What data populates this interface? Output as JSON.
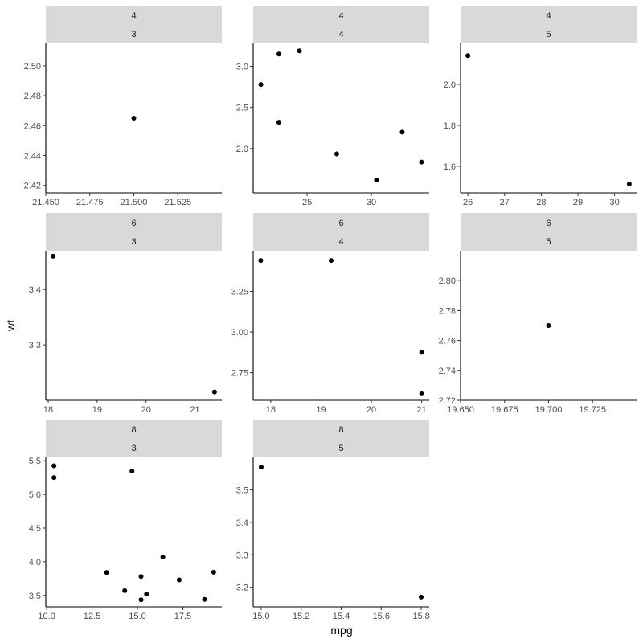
{
  "chart_data": {
    "type": "scatter",
    "xlabel": "mpg",
    "ylabel": "wt",
    "facet_scales": "free",
    "grid": false,
    "colors": {
      "point": "#000000",
      "strip_background": "#d9d9d9",
      "axis_line": "#000000",
      "tick_label": "#4d4d4d",
      "panel_background": "#ffffff"
    },
    "panels": [
      {
        "id": "4-3",
        "strip": [
          "4",
          "3"
        ],
        "xlim": [
          21.45,
          21.55
        ],
        "ylim": [
          2.415,
          2.515
        ],
        "xticks": [
          21.45,
          21.475,
          21.5,
          21.525
        ],
        "xtick_labels": [
          "21.450",
          "21.475",
          "21.500",
          "21.525"
        ],
        "yticks": [
          2.42,
          2.44,
          2.46,
          2.48,
          2.5
        ],
        "ytick_labels": [
          "2.42",
          "2.44",
          "2.46",
          "2.48",
          "2.50"
        ],
        "points": [
          {
            "x": 21.5,
            "y": 2.465
          }
        ]
      },
      {
        "id": "4-4",
        "strip": [
          "4",
          "4"
        ],
        "xlim": [
          20.8,
          34.5
        ],
        "ylim": [
          1.46,
          3.28
        ],
        "xticks": [
          25,
          30
        ],
        "xtick_labels": [
          "25",
          "30"
        ],
        "yticks": [
          2.0,
          2.5,
          3.0
        ],
        "ytick_labels": [
          "2.0",
          "2.5",
          "3.0"
        ],
        "points": [
          {
            "x": 21.4,
            "y": 2.78
          },
          {
            "x": 22.8,
            "y": 3.15
          },
          {
            "x": 22.8,
            "y": 2.32
          },
          {
            "x": 24.4,
            "y": 3.19
          },
          {
            "x": 27.3,
            "y": 1.935
          },
          {
            "x": 30.4,
            "y": 1.615
          },
          {
            "x": 32.4,
            "y": 2.2
          },
          {
            "x": 33.9,
            "y": 1.835
          }
        ]
      },
      {
        "id": "4-5",
        "strip": [
          "4",
          "5"
        ],
        "xlim": [
          25.8,
          30.6
        ],
        "ylim": [
          1.47,
          2.2
        ],
        "xticks": [
          26,
          27,
          28,
          29,
          30
        ],
        "xtick_labels": [
          "26",
          "27",
          "28",
          "29",
          "30"
        ],
        "yticks": [
          1.6,
          1.8,
          2.0
        ],
        "ytick_labels": [
          "1.6",
          "1.8",
          "2.0"
        ],
        "points": [
          {
            "x": 26.0,
            "y": 2.14
          },
          {
            "x": 30.4,
            "y": 1.513
          }
        ]
      },
      {
        "id": "6-3",
        "strip": [
          "6",
          "3"
        ],
        "xlim": [
          17.95,
          21.55
        ],
        "ylim": [
          3.2,
          3.47
        ],
        "xticks": [
          18,
          19,
          20,
          21
        ],
        "xtick_labels": [
          "18",
          "19",
          "20",
          "21"
        ],
        "yticks": [
          3.3,
          3.4
        ],
        "ytick_labels": [
          "3.3",
          "3.4"
        ],
        "points": [
          {
            "x": 18.1,
            "y": 3.46
          },
          {
            "x": 21.4,
            "y": 3.215
          }
        ]
      },
      {
        "id": "6-4",
        "strip": [
          "6",
          "4"
        ],
        "xlim": [
          17.65,
          21.15
        ],
        "ylim": [
          2.58,
          3.5
        ],
        "xticks": [
          18,
          19,
          20,
          21
        ],
        "xtick_labels": [
          "18",
          "19",
          "20",
          "21"
        ],
        "yticks": [
          2.75,
          3.0,
          3.25
        ],
        "ytick_labels": [
          "2.75",
          "3.00",
          "3.25"
        ],
        "points": [
          {
            "x": 17.8,
            "y": 3.44
          },
          {
            "x": 19.2,
            "y": 3.44
          },
          {
            "x": 21.0,
            "y": 2.875
          },
          {
            "x": 21.0,
            "y": 2.62
          }
        ]
      },
      {
        "id": "6-5",
        "strip": [
          "6",
          "5"
        ],
        "xlim": [
          19.65,
          19.75
        ],
        "ylim": [
          2.72,
          2.82
        ],
        "xticks": [
          19.65,
          19.675,
          19.7,
          19.725
        ],
        "xtick_labels": [
          "19.650",
          "19.675",
          "19.700",
          "19.725"
        ],
        "yticks": [
          2.72,
          2.74,
          2.76,
          2.78,
          2.8
        ],
        "ytick_labels": [
          "2.72",
          "2.74",
          "2.76",
          "2.78",
          "2.80"
        ],
        "points": [
          {
            "x": 19.7,
            "y": 2.77
          }
        ]
      },
      {
        "id": "8-3",
        "strip": [
          "8",
          "3"
        ],
        "xlim": [
          9.95,
          19.65
        ],
        "ylim": [
          3.33,
          5.55
        ],
        "xticks": [
          10.0,
          12.5,
          15.0,
          17.5
        ],
        "xtick_labels": [
          "10.0",
          "12.5",
          "15.0",
          "17.5"
        ],
        "yticks": [
          3.5,
          4.0,
          4.5,
          5.0,
          5.5
        ],
        "ytick_labels": [
          "3.5",
          "4.0",
          "4.5",
          "5.0",
          "5.5"
        ],
        "points": [
          {
            "x": 10.4,
            "y": 5.424
          },
          {
            "x": 10.4,
            "y": 5.25
          },
          {
            "x": 13.3,
            "y": 3.84
          },
          {
            "x": 14.3,
            "y": 3.57
          },
          {
            "x": 14.7,
            "y": 5.345
          },
          {
            "x": 15.2,
            "y": 3.78
          },
          {
            "x": 15.2,
            "y": 3.435
          },
          {
            "x": 15.5,
            "y": 3.52
          },
          {
            "x": 16.4,
            "y": 4.07
          },
          {
            "x": 17.3,
            "y": 3.73
          },
          {
            "x": 18.7,
            "y": 3.44
          },
          {
            "x": 19.2,
            "y": 3.845
          }
        ]
      },
      {
        "id": "8-5",
        "strip": [
          "8",
          "5"
        ],
        "xlim": [
          14.96,
          15.84
        ],
        "ylim": [
          3.14,
          3.6
        ],
        "xticks": [
          15.0,
          15.2,
          15.4,
          15.6,
          15.8
        ],
        "xtick_labels": [
          "15.0",
          "15.2",
          "15.4",
          "15.6",
          "15.8"
        ],
        "yticks": [
          3.2,
          3.3,
          3.4,
          3.5
        ],
        "ytick_labels": [
          "3.2",
          "3.3",
          "3.4",
          "3.5"
        ],
        "points": [
          {
            "x": 15.0,
            "y": 3.57
          },
          {
            "x": 15.8,
            "y": 3.17
          }
        ]
      }
    ]
  }
}
